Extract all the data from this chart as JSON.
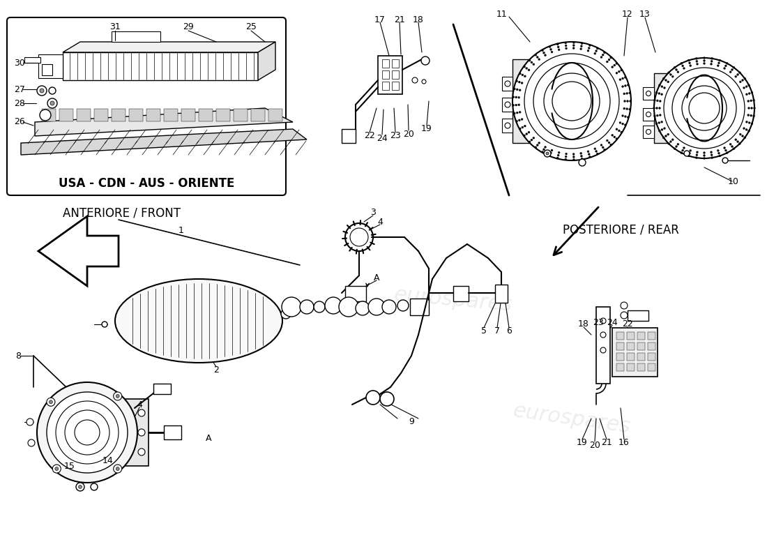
{
  "bg_color": "#ffffff",
  "line_color": "#000000",
  "text_color": "#000000",
  "front_label": "ANTERIORE / FRONT",
  "rear_label": "POSTERIORE / REAR",
  "usa_label": "USA - CDN - AUS - ORIENTE",
  "watermark_color": "#cccccc",
  "watermark_alpha": 0.35,
  "watermark_text": "eurospares",
  "figsize": [
    11.0,
    8.0
  ],
  "dpi": 100
}
